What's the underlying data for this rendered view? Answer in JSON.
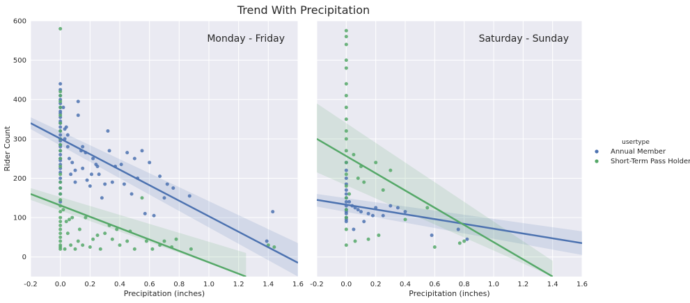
{
  "chart_data": {
    "type": "scatter",
    "title": "Trend With Precipitation",
    "xlabel": "Precipitation (inches)",
    "ylabel": "Rider Count",
    "xlim": [
      -0.2,
      1.6
    ],
    "ylim": [
      -50,
      600
    ],
    "xticks": [
      "-0.2",
      "0.0",
      "0.2",
      "0.4",
      "0.6",
      "0.8",
      "1.0",
      "1.2",
      "1.4",
      "1.6"
    ],
    "yticks": [
      "0",
      "100",
      "200",
      "300",
      "400",
      "500",
      "600"
    ],
    "legend": {
      "title": "usertype",
      "position": "right",
      "entries": [
        {
          "label": "Annual Member",
          "color": "#4c72b0"
        },
        {
          "label": "Short-Term Pass Holder",
          "color": "#55a868"
        }
      ]
    },
    "panels": [
      {
        "label": "Monday - Friday",
        "series": [
          {
            "name": "Annual Member",
            "color": "#4c72b0",
            "x": [
              0,
              0,
              0,
              0,
              0,
              0,
              0,
              0,
              0,
              0,
              0,
              0,
              0,
              0,
              0,
              0,
              0,
              0,
              0,
              0,
              0,
              0,
              0,
              0,
              0,
              0,
              0,
              0,
              0,
              0,
              0.02,
              0.03,
              0.03,
              0.04,
              0.05,
              0.05,
              0.06,
              0.07,
              0.08,
              0.1,
              0.1,
              0.12,
              0.12,
              0.14,
              0.15,
              0.15,
              0.17,
              0.18,
              0.2,
              0.21,
              0.22,
              0.24,
              0.25,
              0.26,
              0.28,
              0.3,
              0.32,
              0.33,
              0.35,
              0.37,
              0.41,
              0.43,
              0.45,
              0.48,
              0.5,
              0.52,
              0.55,
              0.57,
              0.6,
              0.63,
              0.67,
              0.7,
              0.72,
              0.76,
              0.87,
              1.39,
              1.43
            ],
            "y": [
              440,
              425,
              410,
              400,
              390,
              380,
              370,
              365,
              355,
              345,
              340,
              330,
              320,
              310,
              300,
              295,
              285,
              280,
              270,
              260,
              250,
              245,
              235,
              225,
              215,
              200,
              190,
              175,
              160,
              140,
              380,
              325,
              300,
              330,
              310,
              280,
              250,
              210,
              240,
              220,
              190,
              360,
              395,
              270,
              280,
              225,
              265,
              195,
              180,
              210,
              250,
              235,
              230,
              210,
              150,
              185,
              320,
              270,
              190,
              230,
              235,
              185,
              265,
              160,
              250,
              200,
              270,
              110,
              240,
              105,
              205,
              150,
              185,
              175,
              155,
              40,
              115
            ],
            "fit": {
              "x": [
                -0.2,
                1.6
              ],
              "y": [
                340,
                -15
              ]
            },
            "ci": {
              "upper_at_min": 355,
              "lower_at_min": 325,
              "upper_at_max": 35,
              "lower_at_max": -50
            }
          },
          {
            "name": "Short-Term Pass Holder",
            "color": "#55a868",
            "x": [
              0,
              0,
              0,
              0,
              0,
              0,
              0,
              0,
              0,
              0,
              0,
              0,
              0,
              0,
              0,
              0,
              0,
              0,
              0,
              0,
              0,
              0,
              0,
              0,
              0,
              0,
              0,
              0,
              0,
              0,
              0.02,
              0.03,
              0.04,
              0.05,
              0.06,
              0.07,
              0.08,
              0.1,
              0.12,
              0.13,
              0.15,
              0.17,
              0.2,
              0.22,
              0.25,
              0.27,
              0.3,
              0.33,
              0.35,
              0.38,
              0.4,
              0.45,
              0.47,
              0.5,
              0.55,
              0.58,
              0.62,
              0.67,
              0.7,
              0.75,
              0.78,
              0.88,
              1.4,
              1.44
            ],
            "y": [
              580,
              420,
              410,
              395,
              380,
              360,
              340,
              320,
              300,
              285,
              270,
              250,
              230,
              210,
              190,
              175,
              160,
              145,
              130,
              115,
              100,
              90,
              80,
              70,
              60,
              50,
              40,
              30,
              25,
              20,
              120,
              20,
              90,
              60,
              95,
              30,
              100,
              20,
              40,
              70,
              30,
              100,
              25,
              45,
              55,
              20,
              60,
              80,
              45,
              70,
              30,
              40,
              65,
              20,
              150,
              40,
              20,
              30,
              40,
              25,
              45,
              20,
              30,
              25
            ],
            "fit": {
              "x": [
                -0.2,
                1.25
              ],
              "y": [
                160,
                -50
              ]
            },
            "ci": {
              "upper_at_min": 175,
              "lower_at_min": 145,
              "upper_at_max": 10,
              "lower_at_max": -50
            }
          }
        ]
      },
      {
        "label": "Saturday - Sunday",
        "series": [
          {
            "name": "Annual Member",
            "color": "#4c72b0",
            "x": [
              0,
              0,
              0,
              0,
              0,
              0,
              0,
              0,
              0,
              0,
              0,
              0,
              0,
              0,
              0,
              0.02,
              0.04,
              0.05,
              0.06,
              0.08,
              0.1,
              0.12,
              0.15,
              0.18,
              0.2,
              0.25,
              0.3,
              0.35,
              0.4,
              0.58,
              0.76,
              0.82
            ],
            "y": [
              240,
              220,
              200,
              185,
              170,
              160,
              150,
              140,
              130,
              120,
              115,
              110,
              100,
              95,
              90,
              140,
              130,
              70,
              125,
              120,
              115,
              90,
              110,
              105,
              125,
              105,
              130,
              125,
              115,
              55,
              70,
              45
            ],
            "fit": {
              "x": [
                -0.2,
                1.6
              ],
              "y": [
                145,
                35
              ]
            },
            "ci": {
              "upper_at_min": 160,
              "lower_at_min": 128,
              "upper_at_max": 65,
              "lower_at_max": 5
            }
          },
          {
            "name": "Short-Term Pass Holder",
            "color": "#55a868",
            "x": [
              0,
              0,
              0,
              0,
              0,
              0,
              0,
              0,
              0,
              0,
              0,
              0,
              0,
              0,
              0,
              0,
              0,
              0,
              0,
              0,
              0.02,
              0.05,
              0.06,
              0.08,
              0.1,
              0.12,
              0.15,
              0.2,
              0.22,
              0.25,
              0.3,
              0.4,
              0.55,
              0.6,
              0.77,
              0.8
            ],
            "y": [
              575,
              560,
              540,
              500,
              480,
              440,
              410,
              380,
              350,
              320,
              300,
              270,
              240,
              210,
              180,
              150,
              120,
              100,
              70,
              30,
              160,
              260,
              40,
              200,
              230,
              190,
              45,
              240,
              55,
              170,
              220,
              95,
              125,
              25,
              35,
              40
            ],
            "fit": {
              "x": [
                -0.2,
                1.4
              ],
              "y": [
                300,
                -50
              ]
            },
            "ci": {
              "upper_at_min": 390,
              "lower_at_min": 215,
              "upper_at_max": -10,
              "lower_at_max": -50
            }
          }
        ]
      }
    ]
  }
}
